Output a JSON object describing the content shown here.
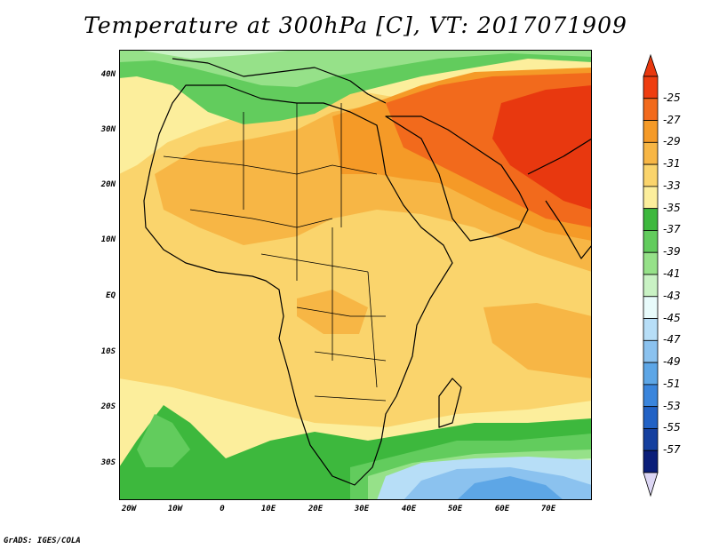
{
  "title": "Temperature at 300hPa [C], VT: 2017071909",
  "footer": "GrADS: IGES/COLA",
  "map": {
    "region": "Africa / Middle East",
    "lat_labels": [
      "40N",
      "30N",
      "20N",
      "10N",
      "EQ",
      "10S",
      "20S",
      "30S"
    ],
    "lon_labels": [
      "20W",
      "10W",
      "0",
      "10E",
      "20E",
      "30E",
      "40E",
      "50E",
      "60E",
      "70E"
    ],
    "lon_range": [
      -21,
      80
    ],
    "lat_range": [
      -37,
      44
    ]
  },
  "colorbar": {
    "labels": [
      "-25",
      "-27",
      "-29",
      "-31",
      "-33",
      "-35",
      "-37",
      "-39",
      "-41",
      "-43",
      "-45",
      "-47",
      "-49",
      "-51",
      "-53",
      "-55",
      "-57"
    ],
    "colors": [
      "#ee3d10",
      "#f26a1c",
      "#f59a27",
      "#f7b645",
      "#fad46c",
      "#fcee9c",
      "#3db83d",
      "#62cc5d",
      "#96e189",
      "#c9f2c4",
      "#e8fbfb",
      "#b7def7",
      "#8bc2ef",
      "#5da6e6",
      "#3a85dc",
      "#2262c5",
      "#15409f",
      "#0a1e79"
    ],
    "top_color": "#e8380f",
    "bottom_color": "#dcd6f4"
  },
  "colors": {
    "hot_core": "#e8380f",
    "warm": "#f59a27",
    "light_orange": "#f7b645",
    "yellow": "#fad46c",
    "cream": "#fcee9c",
    "green": "#3db83d",
    "light_green": "#96e189",
    "cold_blue": "#5da6e6"
  }
}
